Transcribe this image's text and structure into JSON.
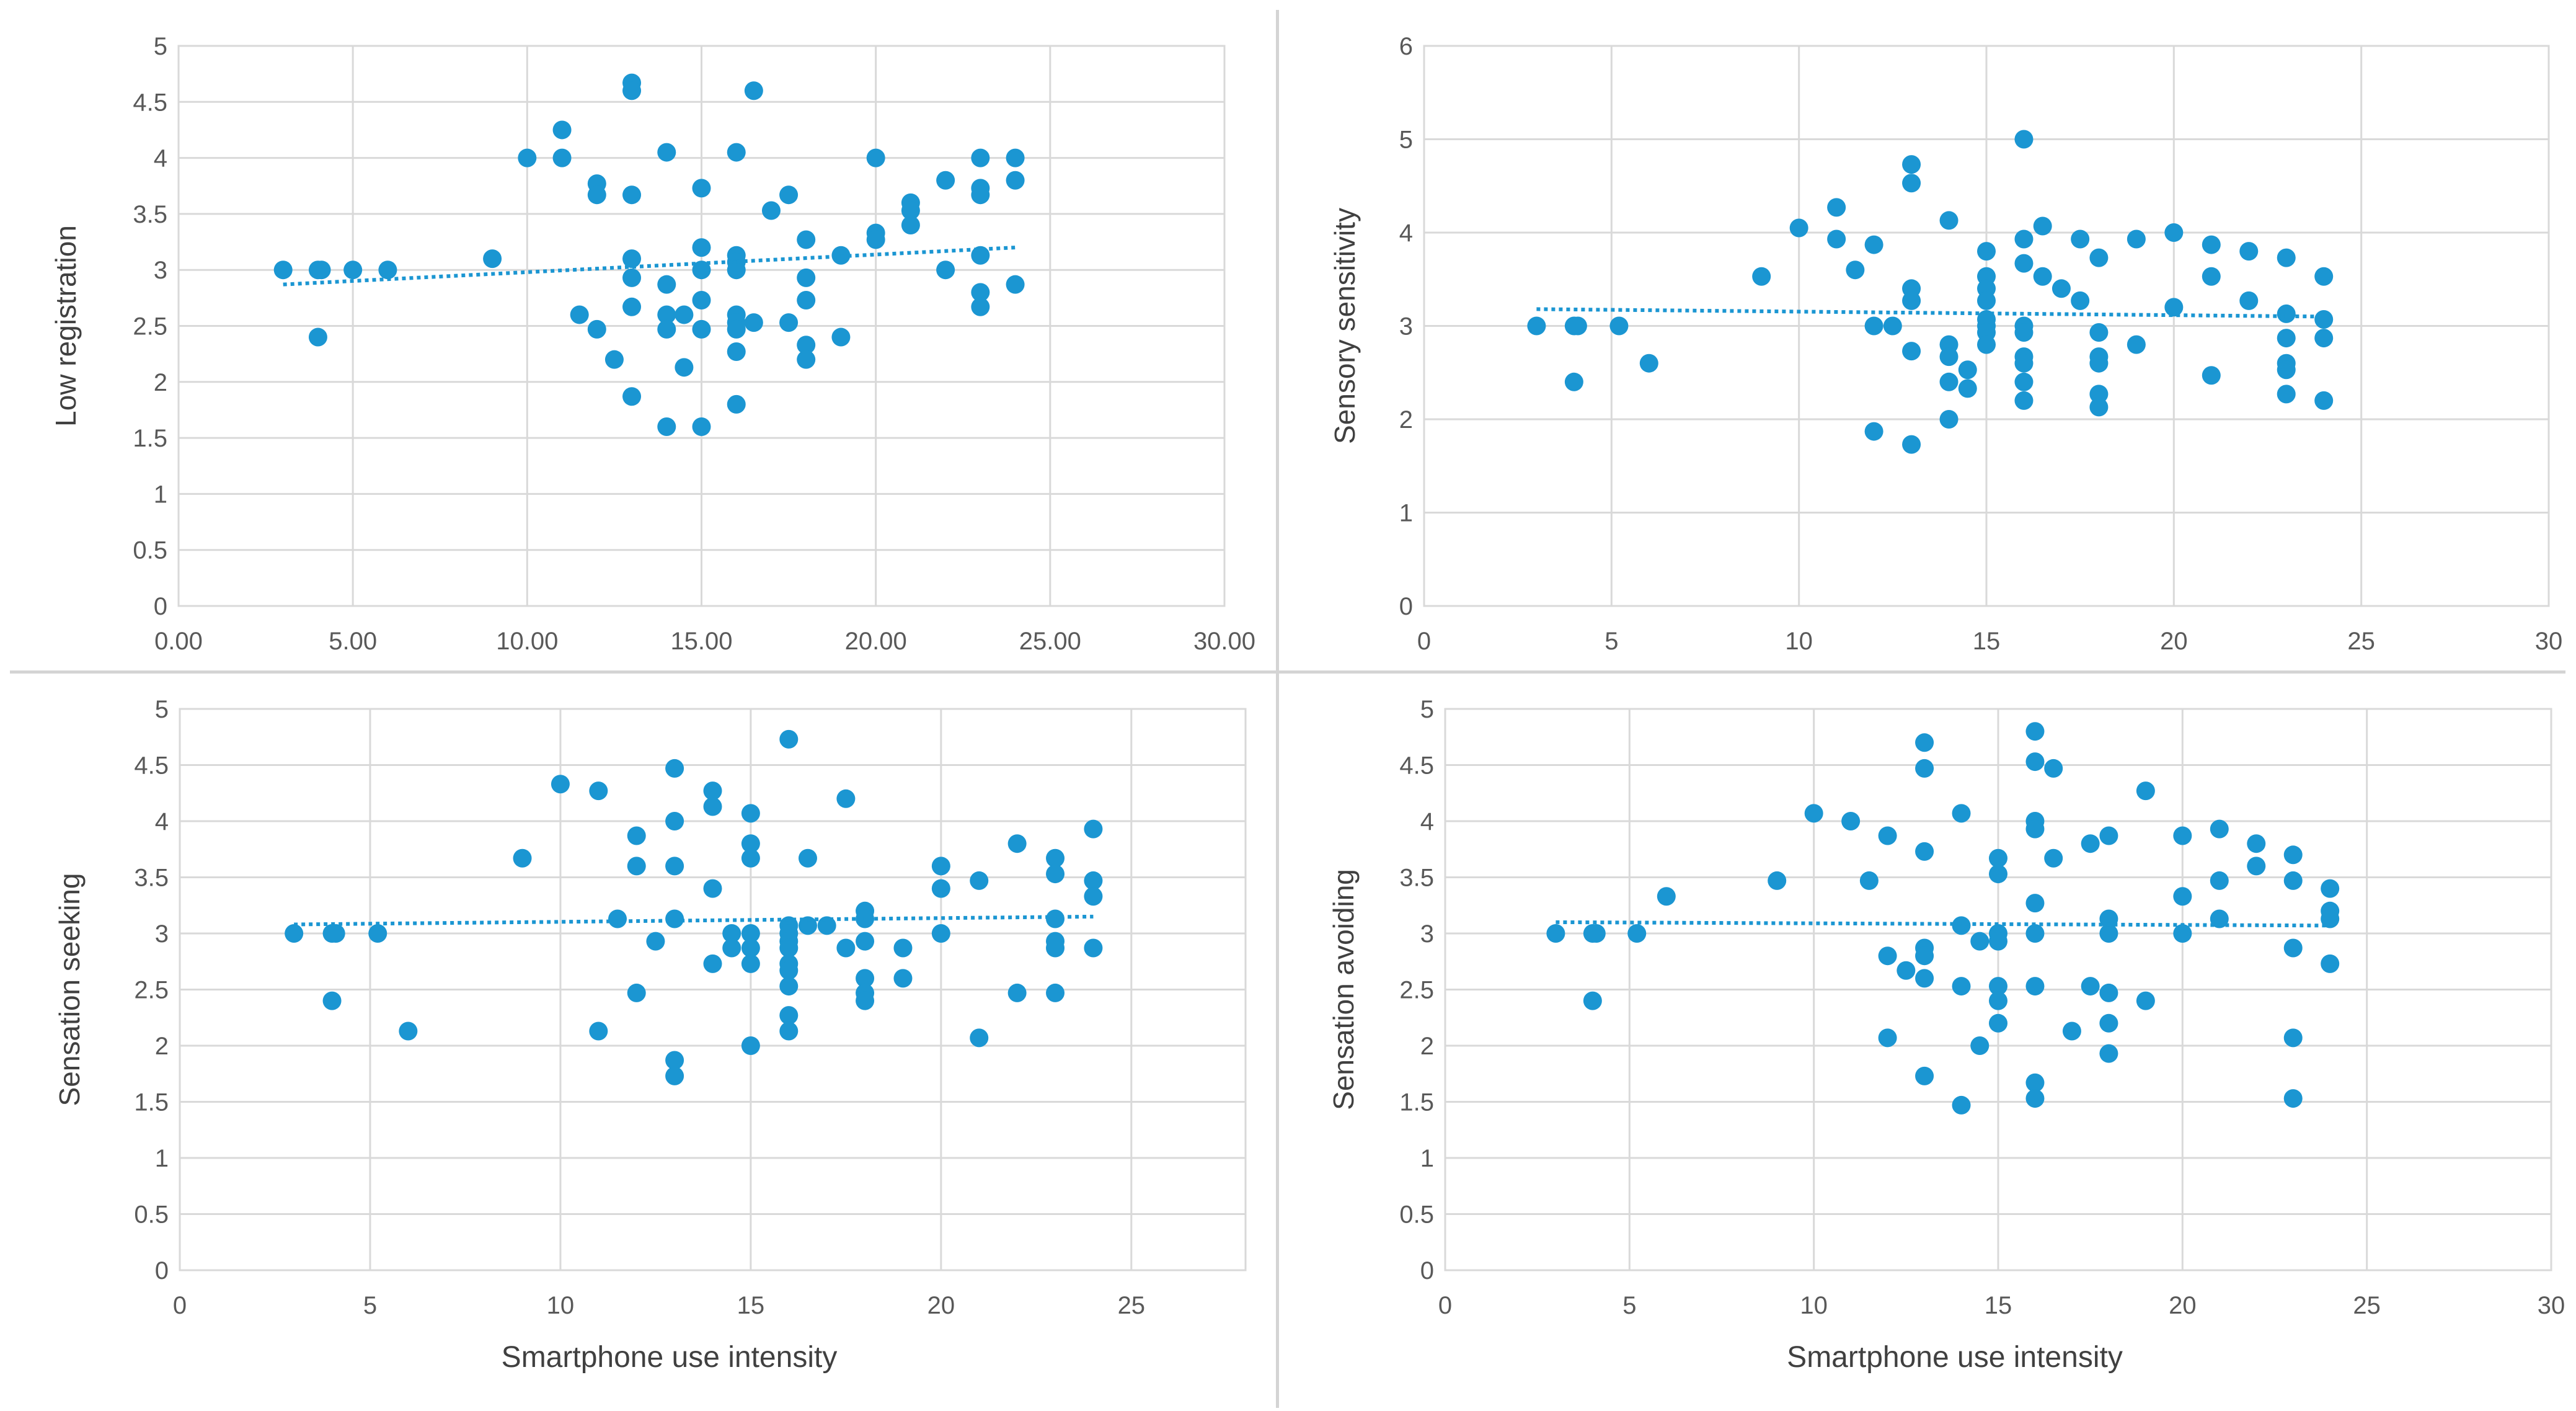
{
  "figure": {
    "colors": {
      "marker": "#1b96d2",
      "grid": "#d9d9d9",
      "tick_text": "#595959",
      "axis_title": "#404040"
    }
  },
  "chart_data": [
    {
      "type": "scatter",
      "title": "",
      "xlabel": "",
      "ylabel": "Low registration",
      "xlim": [
        0,
        30
      ],
      "ylim": [
        0,
        5
      ],
      "xticks": [
        0,
        5,
        10,
        15,
        20,
        25,
        30
      ],
      "xtick_labels": [
        "0.00",
        "5.00",
        "10.00",
        "15.00",
        "20.00",
        "25.00",
        "30.00"
      ],
      "yticks": [
        0,
        0.5,
        1,
        1.5,
        2,
        2.5,
        3,
        3.5,
        4,
        4.5,
        5
      ],
      "ytick_labels": [
        "0",
        "0.5",
        "1",
        "1.5",
        "2",
        "2.5",
        "3",
        "3.5",
        "4",
        "4.5",
        "5"
      ],
      "trendline": {
        "style": "dotted linear",
        "x": [
          3,
          24
        ],
        "y": [
          2.87,
          3.2
        ]
      },
      "points": [
        [
          3,
          3
        ],
        [
          4,
          3
        ],
        [
          4.1,
          3
        ],
        [
          4,
          2.4
        ],
        [
          5,
          3
        ],
        [
          6,
          3
        ],
        [
          9,
          3.1
        ],
        [
          10,
          4
        ],
        [
          11,
          4.25
        ],
        [
          11,
          4
        ],
        [
          11.5,
          2.6
        ],
        [
          12,
          3.77
        ],
        [
          12,
          3.67
        ],
        [
          12,
          2.47
        ],
        [
          12.5,
          2.2
        ],
        [
          13,
          4.67
        ],
        [
          13,
          4.6
        ],
        [
          13,
          3.67
        ],
        [
          13,
          3.1
        ],
        [
          13,
          2.93
        ],
        [
          13,
          2.67
        ],
        [
          13,
          1.87
        ],
        [
          14,
          4.05
        ],
        [
          14,
          2.87
        ],
        [
          14,
          2.6
        ],
        [
          14,
          2.47
        ],
        [
          14,
          1.6
        ],
        [
          14.5,
          2.6
        ],
        [
          14.5,
          2.13
        ],
        [
          15,
          3.73
        ],
        [
          15,
          3.2
        ],
        [
          15,
          3
        ],
        [
          15,
          2.73
        ],
        [
          15,
          2.47
        ],
        [
          15,
          1.6
        ],
        [
          16,
          4.05
        ],
        [
          16,
          3.13
        ],
        [
          16,
          3.07
        ],
        [
          16,
          3
        ],
        [
          16,
          2.6
        ],
        [
          16,
          2.53
        ],
        [
          16,
          2.47
        ],
        [
          16,
          2.27
        ],
        [
          16,
          1.8
        ],
        [
          16.5,
          4.6
        ],
        [
          16.5,
          2.53
        ],
        [
          17,
          3.53
        ],
        [
          17.5,
          3.67
        ],
        [
          17.5,
          2.53
        ],
        [
          18,
          3.27
        ],
        [
          18,
          2.93
        ],
        [
          18,
          2.73
        ],
        [
          18,
          2.33
        ],
        [
          18,
          2.2
        ],
        [
          19,
          3.13
        ],
        [
          19,
          2.4
        ],
        [
          20,
          4
        ],
        [
          20,
          3.33
        ],
        [
          20,
          3.27
        ],
        [
          21,
          3.6
        ],
        [
          21,
          3.53
        ],
        [
          21,
          3.4
        ],
        [
          22,
          3.8
        ],
        [
          22,
          3
        ],
        [
          23,
          4
        ],
        [
          23,
          3.73
        ],
        [
          23,
          3.67
        ],
        [
          23,
          3.13
        ],
        [
          23,
          2.8
        ],
        [
          23,
          2.67
        ],
        [
          24,
          4
        ],
        [
          24,
          3.8
        ],
        [
          24,
          2.87
        ]
      ]
    },
    {
      "type": "scatter",
      "title": "",
      "xlabel": "",
      "ylabel": "Sensory sensitivity",
      "xlim": [
        0,
        30
      ],
      "ylim": [
        0,
        6
      ],
      "xticks": [
        0,
        5,
        10,
        15,
        20,
        25,
        30
      ],
      "xtick_labels": [
        "0",
        "5",
        "10",
        "15",
        "20",
        "25",
        "30"
      ],
      "yticks": [
        0,
        1,
        2,
        3,
        4,
        5,
        6
      ],
      "ytick_labels": [
        "0",
        "1",
        "2",
        "3",
        "4",
        "5",
        "6"
      ],
      "trendline": {
        "style": "dotted linear",
        "x": [
          3,
          24
        ],
        "y": [
          3.18,
          3.1
        ]
      },
      "points": [
        [
          3,
          3
        ],
        [
          4,
          3
        ],
        [
          4.1,
          3
        ],
        [
          4,
          2.4
        ],
        [
          5.2,
          3
        ],
        [
          6,
          2.6
        ],
        [
          9,
          3.53
        ],
        [
          10,
          4.05
        ],
        [
          11,
          4.27
        ],
        [
          11,
          3.93
        ],
        [
          11.5,
          3.6
        ],
        [
          12,
          3.87
        ],
        [
          12,
          3
        ],
        [
          12,
          1.87
        ],
        [
          12.5,
          3
        ],
        [
          13,
          4.73
        ],
        [
          13,
          4.53
        ],
        [
          13,
          3.4
        ],
        [
          13,
          3.27
        ],
        [
          13,
          2.73
        ],
        [
          13,
          1.73
        ],
        [
          14,
          4.13
        ],
        [
          14,
          2.8
        ],
        [
          14,
          2.67
        ],
        [
          14,
          2.4
        ],
        [
          14,
          2
        ],
        [
          14.5,
          2.53
        ],
        [
          14.5,
          2.33
        ],
        [
          15,
          3.8
        ],
        [
          15,
          3.53
        ],
        [
          15,
          3.4
        ],
        [
          15,
          3.27
        ],
        [
          15,
          3.07
        ],
        [
          15,
          3
        ],
        [
          15,
          2.93
        ],
        [
          15,
          2.8
        ],
        [
          16,
          5
        ],
        [
          16,
          3.93
        ],
        [
          16,
          3.67
        ],
        [
          16,
          3
        ],
        [
          16,
          2.93
        ],
        [
          16,
          2.67
        ],
        [
          16,
          2.6
        ],
        [
          16,
          2.4
        ],
        [
          16,
          2.2
        ],
        [
          16.5,
          4.07
        ],
        [
          16.5,
          3.53
        ],
        [
          17,
          3.4
        ],
        [
          17.5,
          3.93
        ],
        [
          17.5,
          3.27
        ],
        [
          18,
          3.73
        ],
        [
          18,
          2.93
        ],
        [
          18,
          2.67
        ],
        [
          18,
          2.6
        ],
        [
          18,
          2.27
        ],
        [
          18,
          2.13
        ],
        [
          19,
          3.93
        ],
        [
          19,
          2.8
        ],
        [
          20,
          4
        ],
        [
          20,
          3.2
        ],
        [
          21,
          3.87
        ],
        [
          21,
          3.53
        ],
        [
          21,
          2.47
        ],
        [
          22,
          3.8
        ],
        [
          22,
          3.27
        ],
        [
          23,
          3.73
        ],
        [
          23,
          3.13
        ],
        [
          23,
          2.87
        ],
        [
          23,
          2.6
        ],
        [
          23,
          2.53
        ],
        [
          23,
          2.27
        ],
        [
          24,
          3.53
        ],
        [
          24,
          3.07
        ],
        [
          24,
          2.87
        ],
        [
          24,
          2.2
        ]
      ]
    },
    {
      "type": "scatter",
      "title": "",
      "xlabel": "Smartphone use intensity",
      "ylabel": "Sensation seeking",
      "xlim": [
        0,
        28
      ],
      "ylim": [
        0,
        5
      ],
      "xticks": [
        0,
        5,
        10,
        15,
        20,
        25
      ],
      "xtick_labels": [
        "0",
        "5",
        "10",
        "15",
        "20",
        "25"
      ],
      "yticks": [
        0,
        0.5,
        1,
        1.5,
        2,
        2.5,
        3,
        3.5,
        4,
        4.5,
        5
      ],
      "ytick_labels": [
        "0",
        "0.5",
        "1",
        "1.5",
        "2",
        "2.5",
        "3",
        "3.5",
        "4",
        "4.5",
        "5"
      ],
      "trendline": {
        "style": "dotted linear",
        "x": [
          3,
          24
        ],
        "y": [
          3.08,
          3.15
        ]
      },
      "points": [
        [
          3,
          3
        ],
        [
          4,
          3
        ],
        [
          4.1,
          3
        ],
        [
          4,
          2.4
        ],
        [
          5.2,
          3
        ],
        [
          6,
          2.13
        ],
        [
          9,
          3.67
        ],
        [
          10,
          4.33
        ],
        [
          11,
          4.27
        ],
        [
          11,
          2.13
        ],
        [
          11.5,
          3.13
        ],
        [
          12,
          3.87
        ],
        [
          12,
          3.6
        ],
        [
          12,
          2.47
        ],
        [
          12.5,
          2.93
        ],
        [
          13,
          4.47
        ],
        [
          13,
          4
        ],
        [
          13,
          3.6
        ],
        [
          13,
          3.13
        ],
        [
          13,
          1.87
        ],
        [
          13,
          1.73
        ],
        [
          14,
          4.27
        ],
        [
          14,
          4.13
        ],
        [
          14,
          3.4
        ],
        [
          14,
          2.73
        ],
        [
          14.5,
          3
        ],
        [
          14.5,
          2.87
        ],
        [
          15,
          4.07
        ],
        [
          15,
          3.8
        ],
        [
          15,
          3.67
        ],
        [
          15,
          3
        ],
        [
          15,
          2.87
        ],
        [
          15,
          2.73
        ],
        [
          15,
          2
        ],
        [
          16,
          4.73
        ],
        [
          16,
          3.07
        ],
        [
          16,
          3
        ],
        [
          16,
          2.93
        ],
        [
          16,
          2.87
        ],
        [
          16,
          2.73
        ],
        [
          16,
          2.67
        ],
        [
          16,
          2.53
        ],
        [
          16,
          2.27
        ],
        [
          16,
          2.13
        ],
        [
          16.5,
          3.67
        ],
        [
          16.5,
          3.07
        ],
        [
          17,
          3.07
        ],
        [
          17.5,
          4.2
        ],
        [
          17.5,
          2.87
        ],
        [
          18,
          3.2
        ],
        [
          18,
          3.13
        ],
        [
          18,
          2.93
        ],
        [
          18,
          2.6
        ],
        [
          18,
          2.47
        ],
        [
          18,
          2.4
        ],
        [
          19,
          2.87
        ],
        [
          19,
          2.6
        ],
        [
          20,
          3.6
        ],
        [
          20,
          3.4
        ],
        [
          20,
          3
        ],
        [
          21,
          3.47
        ],
        [
          21,
          2.07
        ],
        [
          22,
          3.8
        ],
        [
          22,
          2.47
        ],
        [
          23,
          3.67
        ],
        [
          23,
          3.53
        ],
        [
          23,
          3.13
        ],
        [
          23,
          2.93
        ],
        [
          23,
          2.87
        ],
        [
          23,
          2.47
        ],
        [
          24,
          3.93
        ],
        [
          24,
          3.47
        ],
        [
          24,
          3.33
        ],
        [
          24,
          2.87
        ]
      ]
    },
    {
      "type": "scatter",
      "title": "",
      "xlabel": "Smartphone use intensity",
      "ylabel": "Sensation avoiding",
      "xlim": [
        0,
        30
      ],
      "ylim": [
        0,
        5
      ],
      "xticks": [
        0,
        5,
        10,
        15,
        20,
        25,
        30
      ],
      "xtick_labels": [
        "0",
        "5",
        "10",
        "15",
        "20",
        "25",
        "30"
      ],
      "yticks": [
        0,
        0.5,
        1,
        1.5,
        2,
        2.5,
        3,
        3.5,
        4,
        4.5,
        5
      ],
      "ytick_labels": [
        "0",
        "0.5",
        "1",
        "1.5",
        "2",
        "2.5",
        "3",
        "3.5",
        "4",
        "4.5",
        "5"
      ],
      "trendline": {
        "style": "dotted linear",
        "x": [
          3,
          24
        ],
        "y": [
          3.1,
          3.07
        ]
      },
      "points": [
        [
          3,
          3
        ],
        [
          4,
          3
        ],
        [
          4.1,
          3
        ],
        [
          4,
          2.4
        ],
        [
          5.2,
          3
        ],
        [
          6,
          3.33
        ],
        [
          9,
          3.47
        ],
        [
          10,
          4.07
        ],
        [
          11,
          4
        ],
        [
          11.5,
          3.47
        ],
        [
          12,
          3.87
        ],
        [
          12,
          2.8
        ],
        [
          12,
          2.07
        ],
        [
          12.5,
          2.67
        ],
        [
          13,
          4.7
        ],
        [
          13,
          4.47
        ],
        [
          13,
          3.73
        ],
        [
          13,
          2.87
        ],
        [
          13,
          2.8
        ],
        [
          13,
          2.6
        ],
        [
          13,
          1.73
        ],
        [
          14,
          4.07
        ],
        [
          14,
          3.07
        ],
        [
          14,
          2.53
        ],
        [
          14,
          1.47
        ],
        [
          14.5,
          2.93
        ],
        [
          14.5,
          2
        ],
        [
          15,
          3.67
        ],
        [
          15,
          3.53
        ],
        [
          15,
          3
        ],
        [
          15,
          2.93
        ],
        [
          15,
          2.53
        ],
        [
          15,
          2.4
        ],
        [
          15,
          2.2
        ],
        [
          16,
          4.8
        ],
        [
          16,
          4.53
        ],
        [
          16,
          4
        ],
        [
          16,
          3.93
        ],
        [
          16,
          3.27
        ],
        [
          16,
          3
        ],
        [
          16,
          2.53
        ],
        [
          16,
          1.67
        ],
        [
          16,
          1.53
        ],
        [
          16.5,
          4.47
        ],
        [
          16.5,
          3.67
        ],
        [
          17,
          2.13
        ],
        [
          17.5,
          3.8
        ],
        [
          17.5,
          2.53
        ],
        [
          18,
          3.87
        ],
        [
          18,
          3.13
        ],
        [
          18,
          3
        ],
        [
          18,
          2.47
        ],
        [
          18,
          2.2
        ],
        [
          18,
          1.93
        ],
        [
          19,
          4.27
        ],
        [
          19,
          2.4
        ],
        [
          20,
          3.87
        ],
        [
          20,
          3.33
        ],
        [
          20,
          3
        ],
        [
          21,
          3.93
        ],
        [
          21,
          3.47
        ],
        [
          21,
          3.13
        ],
        [
          22,
          3.8
        ],
        [
          22,
          3.6
        ],
        [
          23,
          3.7
        ],
        [
          23,
          3.47
        ],
        [
          23,
          2.87
        ],
        [
          23,
          2.07
        ],
        [
          23,
          1.53
        ],
        [
          24,
          3.4
        ],
        [
          24,
          3.2
        ],
        [
          24,
          3.13
        ],
        [
          24,
          2.73
        ]
      ]
    }
  ]
}
